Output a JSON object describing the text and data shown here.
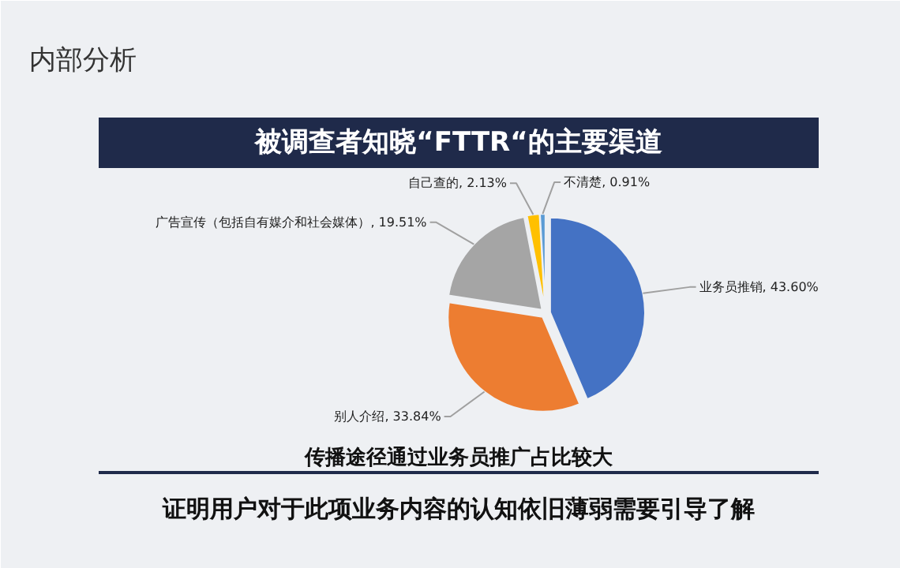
{
  "chart_data": {
    "type": "pie",
    "title": "被调查者知晓“FTTR“的主要渠道",
    "annotations": [
      "内部分析",
      "传播途径通过业务员推广占比较大",
      "证明用户对于此项业务内容的认知依旧薄弱需要引导了解"
    ],
    "categories": [
      "业务员推销",
      "别人介绍",
      "广告宣传（包括自有媒介和社会媒体）",
      "自己查的",
      "不清楚"
    ],
    "values": [
      43.6,
      33.84,
      19.51,
      2.13,
      0.91
    ],
    "value_labels": [
      "43.60%",
      "33.84%",
      "19.51%",
      "2.13%",
      "0.91%"
    ],
    "colors": [
      "#4472c4",
      "#ed7d31",
      "#a5a5a5",
      "#ffc000",
      "#5b9bd5"
    ]
  }
}
